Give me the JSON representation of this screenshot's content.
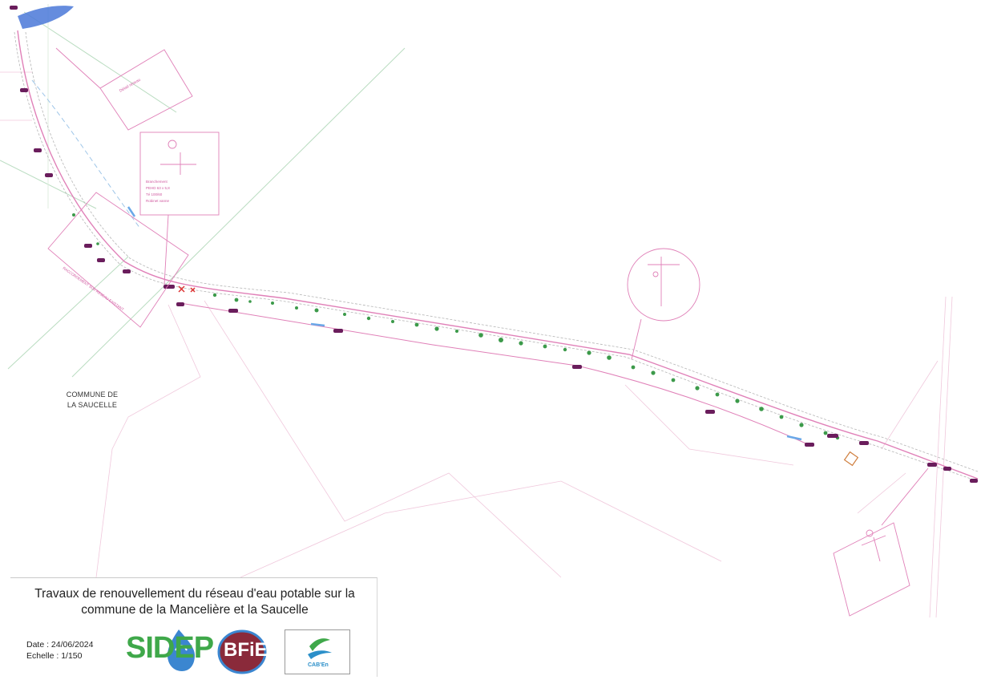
{
  "map": {
    "commune_label": "COMMUNE DE\nLA SAUCELLE"
  },
  "title_block": {
    "title": "Travaux de renouvellement du réseau d'eau potable sur la commune de la Mancelière et la Saucelle",
    "date": "Date : 24/06/2024",
    "scale": "Echelle : 1/150"
  },
  "logos": {
    "sidep": {
      "text": "SIDEP",
      "color": "#3fa84a"
    },
    "bfie": {
      "text": "BFiE",
      "color": "#8a2a3a"
    },
    "cab": {
      "text": "CAB'En",
      "color": "#2b8fc9"
    }
  },
  "colors": {
    "network_pink": "#e080b8",
    "valve_purple": "#6a1d5c",
    "vegetation_green": "#3c9a4a",
    "parcel_green": "#b9dcc0",
    "water_blue": "#3b6fd0"
  }
}
